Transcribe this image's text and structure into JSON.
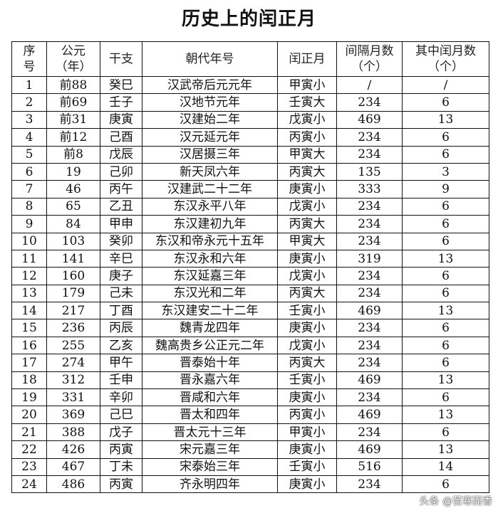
{
  "title": "历史上的闰正月",
  "columns": [
    "序号",
    "公元（年）",
    "干支",
    "朝代年号",
    "闰正月",
    "间隔月数（个）",
    "其中闰月数（个）"
  ],
  "column_lines": [
    [
      "序",
      "号"
    ],
    [
      "公元",
      "（年）"
    ],
    [
      "干支"
    ],
    [
      "朝代年号"
    ],
    [
      "闰正月"
    ],
    [
      "间隔月数",
      "（个）"
    ],
    [
      "其中闰月数",
      "（个）"
    ]
  ],
  "rows": [
    [
      "1",
      "前88",
      "癸巳",
      "汉武帝后元元年",
      "甲寅小",
      "/",
      "/"
    ],
    [
      "2",
      "前69",
      "壬子",
      "汉地节元年",
      "壬寅大",
      "234",
      "6"
    ],
    [
      "3",
      "前31",
      "庚寅",
      "汉建始二年",
      "戊寅小",
      "469",
      "13"
    ],
    [
      "4",
      "前12",
      "己酉",
      "汉元延元年",
      "丙寅小",
      "234",
      "6"
    ],
    [
      "5",
      "前8",
      "戊辰",
      "汉居摄三年",
      "甲寅大",
      "234",
      "6"
    ],
    [
      "6",
      "19",
      "己卯",
      "新天凤六年",
      "丙寅大",
      "135",
      "3"
    ],
    [
      "7",
      "46",
      "丙午",
      "汉建武二十二年",
      "庚寅小",
      "333",
      "9"
    ],
    [
      "8",
      "65",
      "乙丑",
      "东汉永平八年",
      "戊寅小",
      "234",
      "6"
    ],
    [
      "9",
      "84",
      "甲申",
      "东汉建初九年",
      "丙寅大",
      "234",
      "6"
    ],
    [
      "10",
      "103",
      "癸卯",
      "东汉和帝永元十五年",
      "甲寅大",
      "234",
      "6"
    ],
    [
      "11",
      "141",
      "辛巳",
      "东汉永和六年",
      "庚寅小",
      "319",
      "13"
    ],
    [
      "12",
      "160",
      "庚子",
      "东汉延嘉三年",
      "戊寅小",
      "234",
      "6"
    ],
    [
      "13",
      "179",
      "己未",
      "东汉光和二年",
      "丙寅大",
      "234",
      "6"
    ],
    [
      "14",
      "217",
      "丁酉",
      "东汉建安二十二年",
      "壬寅小",
      "469",
      "13"
    ],
    [
      "15",
      "236",
      "丙辰",
      "魏青龙四年",
      "庚寅小",
      "234",
      "6"
    ],
    [
      "16",
      "255",
      "乙亥",
      "魏高贵乡公正元二年",
      "戊寅小",
      "234",
      "6"
    ],
    [
      "17",
      "274",
      "甲午",
      "晋泰始十年",
      "丙寅大",
      "234",
      "6"
    ],
    [
      "18",
      "312",
      "壬申",
      "晋永嘉六年",
      "壬寅小",
      "469",
      "13"
    ],
    [
      "19",
      "331",
      "辛卯",
      "晋咸和六年",
      "庚寅小",
      "234",
      "6"
    ],
    [
      "20",
      "369",
      "己巳",
      "晋太和四年",
      "丙寅小",
      "469",
      "13"
    ],
    [
      "21",
      "388",
      "戊子",
      "晋太元十三年",
      "甲寅小",
      "234",
      "6"
    ],
    [
      "22",
      "426",
      "丙寅",
      "宋元嘉三年",
      "庚寅小",
      "469",
      "13"
    ],
    [
      "23",
      "467",
      "丁未",
      "宋泰始三年",
      "壬寅小",
      "516",
      "14"
    ],
    [
      "24",
      "486",
      "丙寅",
      "齐永明四年",
      "庚寅小",
      "234",
      "6"
    ]
  ],
  "watermark": "头条 @苦寒而香"
}
